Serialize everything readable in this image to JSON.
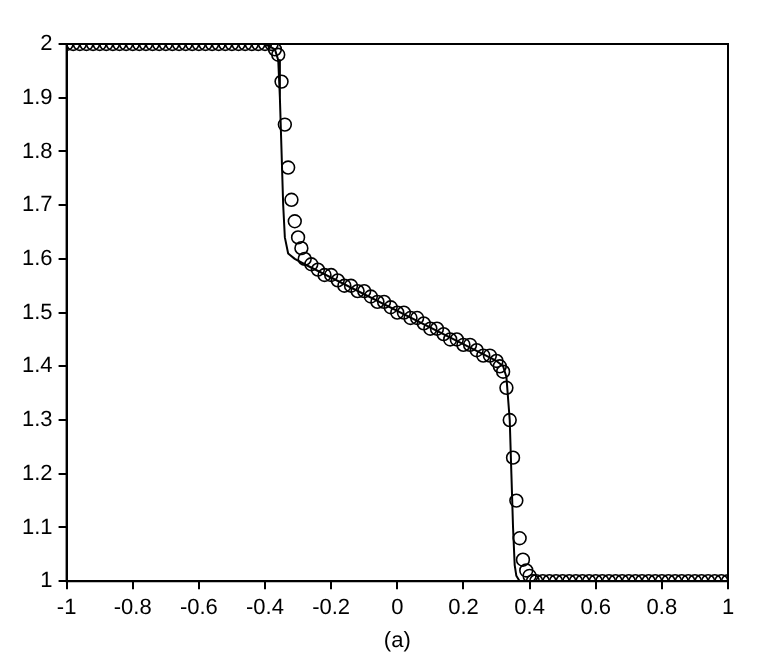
{
  "chart_data": {
    "type": "line",
    "xlabel": "(a)",
    "xlim": [
      -1,
      1
    ],
    "ylim": [
      1,
      2
    ],
    "xticks": [
      -1,
      -0.8,
      -0.6,
      -0.4,
      -0.2,
      0,
      0.2,
      0.4,
      0.6,
      0.8,
      1
    ],
    "yticks": [
      1,
      1.1,
      1.2,
      1.3,
      1.4,
      1.5,
      1.6,
      1.7,
      1.8,
      1.9,
      2
    ],
    "grid": false,
    "series": [
      {
        "type": "line",
        "color": "#000000",
        "marker": "none",
        "line_style": "solid",
        "x": [
          -1,
          -0.4,
          -0.37,
          -0.36,
          -0.355,
          -0.35,
          -0.345,
          -0.34,
          -0.33,
          -0.31,
          -0.28,
          0.3,
          0.32,
          0.33,
          0.34,
          0.345,
          0.35,
          0.355,
          0.36,
          0.37,
          0.4,
          1
        ],
        "values": [
          2,
          2,
          1.99,
          1.97,
          1.9,
          1.8,
          1.7,
          1.64,
          1.61,
          1.6,
          1.59,
          1.41,
          1.4,
          1.38,
          1.3,
          1.2,
          1.1,
          1.03,
          1.01,
          1,
          1,
          1
        ]
      },
      {
        "type": "scatter",
        "color": "#000000",
        "marker": "circle",
        "x": [
          -1,
          -0.98,
          -0.96,
          -0.94,
          -0.92,
          -0.9,
          -0.88,
          -0.86,
          -0.84,
          -0.82,
          -0.8,
          -0.78,
          -0.76,
          -0.74,
          -0.72,
          -0.7,
          -0.68,
          -0.66,
          -0.64,
          -0.62,
          -0.6,
          -0.58,
          -0.56,
          -0.54,
          -0.52,
          -0.5,
          -0.48,
          -0.46,
          -0.44,
          -0.42,
          -0.4,
          -0.38,
          -0.37,
          -0.36,
          -0.35,
          -0.34,
          -0.33,
          -0.32,
          -0.31,
          -0.3,
          -0.29,
          -0.28,
          -0.26,
          -0.24,
          -0.22,
          -0.2,
          -0.18,
          -0.16,
          -0.14,
          -0.12,
          -0.1,
          -0.08,
          -0.06,
          -0.04,
          -0.02,
          0,
          0.02,
          0.04,
          0.06,
          0.08,
          0.1,
          0.12,
          0.14,
          0.16,
          0.18,
          0.2,
          0.22,
          0.24,
          0.26,
          0.28,
          0.3,
          0.31,
          0.32,
          0.33,
          0.34,
          0.35,
          0.36,
          0.37,
          0.38,
          0.39,
          0.4,
          0.41,
          0.42,
          0.44,
          0.46,
          0.48,
          0.5,
          0.52,
          0.54,
          0.56,
          0.58,
          0.6,
          0.62,
          0.64,
          0.66,
          0.68,
          0.7,
          0.72,
          0.74,
          0.76,
          0.78,
          0.8,
          0.82,
          0.84,
          0.86,
          0.88,
          0.9,
          0.92,
          0.94,
          0.96,
          0.98,
          1
        ],
        "values": [
          2,
          2,
          2,
          2,
          2,
          2,
          2,
          2,
          2,
          2,
          2,
          2,
          2,
          2,
          2,
          2,
          2,
          2,
          2,
          2,
          2,
          2,
          2,
          2,
          2,
          2,
          2,
          2,
          2,
          2,
          2,
          2,
          1.99,
          1.98,
          1.93,
          1.85,
          1.77,
          1.71,
          1.67,
          1.64,
          1.62,
          1.6,
          1.59,
          1.58,
          1.57,
          1.57,
          1.56,
          1.55,
          1.55,
          1.54,
          1.54,
          1.53,
          1.52,
          1.52,
          1.51,
          1.5,
          1.5,
          1.49,
          1.49,
          1.48,
          1.47,
          1.47,
          1.46,
          1.45,
          1.45,
          1.44,
          1.44,
          1.43,
          1.42,
          1.42,
          1.41,
          1.4,
          1.39,
          1.36,
          1.3,
          1.23,
          1.15,
          1.08,
          1.04,
          1.02,
          1.01,
          1,
          1,
          1,
          1,
          1,
          1,
          1,
          1,
          1,
          1,
          1,
          1,
          1,
          1,
          1,
          1,
          1,
          1,
          1,
          1,
          1,
          1,
          1,
          1,
          1,
          1,
          1,
          1,
          1,
          1,
          1
        ]
      }
    ]
  }
}
